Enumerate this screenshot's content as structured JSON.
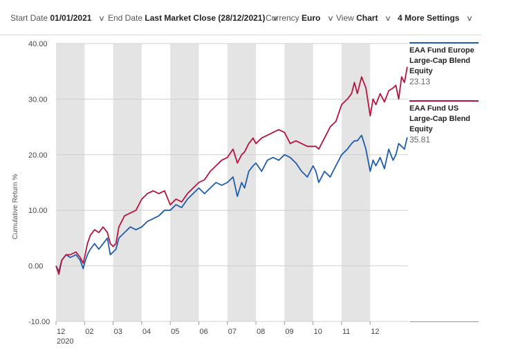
{
  "toolbar": {
    "start_label": "Start Date",
    "start_value": "01/01/2021",
    "end_label": "End Date",
    "end_value": "Last Market Close (28/12/2021)",
    "currency_label": "Currency",
    "currency_value": "Euro",
    "view_label": "View",
    "view_value": "Chart",
    "more_label": "4 More Settings",
    "chevron": "∨"
  },
  "legend": [
    {
      "name": "EAA Fund Europe Large-Cap Blend Equity",
      "value": "23.13",
      "color": "#1f5bab"
    },
    {
      "name": "EAA Fund US Large-Cap Blend Equity",
      "value": "35.81",
      "color": "#b5123e"
    }
  ],
  "chart_data": {
    "type": "line",
    "ylabel": "Cumulative Return %",
    "ylim": [
      -10,
      40
    ],
    "yticks": [
      -10,
      0,
      10,
      20,
      30,
      40
    ],
    "ytick_labels": [
      "-10.00",
      "0.00",
      "10.00",
      "20.00",
      "30.00",
      "40.00"
    ],
    "x_range": [
      0,
      12.35
    ],
    "x_ticks": [
      {
        "x": 0,
        "label": "12",
        "sublabel": "2020"
      },
      {
        "x": 1,
        "label": "02"
      },
      {
        "x": 2,
        "label": "03"
      },
      {
        "x": 3,
        "label": "04"
      },
      {
        "x": 4,
        "label": "05"
      },
      {
        "x": 5,
        "label": "06"
      },
      {
        "x": 6,
        "label": "07"
      },
      {
        "x": 7,
        "label": "08"
      },
      {
        "x": 8,
        "label": "09"
      },
      {
        "x": 9,
        "label": "10"
      },
      {
        "x": 10,
        "label": "11"
      },
      {
        "x": 11,
        "label": "12"
      }
    ],
    "shaded_bands": [
      [
        0,
        1
      ],
      [
        2,
        3
      ],
      [
        4,
        5
      ],
      [
        6,
        7
      ],
      [
        8,
        9
      ],
      [
        10,
        11
      ]
    ],
    "grid": true,
    "series": [
      {
        "name": "EAA Fund Europe Large-Cap Blend Equity",
        "color": "#1f5bab",
        "x": [
          0,
          0.1,
          0.2,
          0.35,
          0.5,
          0.7,
          0.85,
          0.95,
          1.0,
          1.1,
          1.2,
          1.35,
          1.5,
          1.65,
          1.8,
          1.9,
          2.0,
          2.1,
          2.2,
          2.4,
          2.6,
          2.8,
          3.0,
          3.2,
          3.4,
          3.6,
          3.8,
          4.0,
          4.2,
          4.4,
          4.6,
          4.8,
          5.0,
          5.2,
          5.4,
          5.6,
          5.8,
          6.0,
          6.2,
          6.35,
          6.5,
          6.6,
          6.75,
          6.9,
          7.0,
          7.2,
          7.4,
          7.6,
          7.8,
          8.0,
          8.2,
          8.4,
          8.6,
          8.8,
          9.0,
          9.1,
          9.2,
          9.4,
          9.6,
          9.8,
          10.0,
          10.2,
          10.35,
          10.45,
          10.55,
          10.7,
          10.85,
          11.0,
          11.1,
          11.2,
          11.35,
          11.5,
          11.65,
          11.8,
          11.9,
          12.0,
          12.1,
          12.2,
          12.3
        ],
        "y": [
          0,
          -1,
          1,
          2,
          1.5,
          2,
          1,
          -0.5,
          0.5,
          2,
          3,
          4,
          3,
          4,
          5,
          2,
          2.5,
          3,
          5,
          6,
          7,
          6.5,
          7,
          8,
          8.5,
          9,
          10,
          10,
          11,
          10.5,
          12,
          13,
          14,
          13,
          14,
          15,
          14.5,
          15,
          16,
          12.5,
          15,
          14,
          17,
          18,
          18.5,
          17,
          19,
          19.5,
          19,
          20,
          19.5,
          18.5,
          17,
          16,
          18,
          17,
          15,
          17,
          16,
          18,
          20,
          21,
          22,
          22.5,
          22.5,
          23.5,
          21,
          17,
          19,
          18,
          19.5,
          17.5,
          21,
          19,
          20,
          22,
          21.5,
          21,
          23.13
        ]
      },
      {
        "name": "EAA Fund US Large-Cap Blend Equity",
        "color": "#b5123e",
        "x": [
          0,
          0.1,
          0.2,
          0.35,
          0.5,
          0.7,
          0.85,
          0.95,
          1.0,
          1.1,
          1.2,
          1.35,
          1.5,
          1.65,
          1.8,
          1.9,
          2.0,
          2.1,
          2.2,
          2.4,
          2.6,
          2.8,
          3.0,
          3.2,
          3.4,
          3.6,
          3.8,
          4.0,
          4.2,
          4.4,
          4.6,
          4.8,
          5.0,
          5.2,
          5.4,
          5.6,
          5.8,
          6.0,
          6.2,
          6.35,
          6.5,
          6.6,
          6.75,
          6.9,
          7.0,
          7.2,
          7.4,
          7.6,
          7.8,
          8.0,
          8.2,
          8.4,
          8.6,
          8.8,
          9.0,
          9.1,
          9.2,
          9.4,
          9.6,
          9.8,
          10.0,
          10.2,
          10.35,
          10.45,
          10.55,
          10.7,
          10.85,
          11.0,
          11.1,
          11.2,
          11.35,
          11.5,
          11.65,
          11.8,
          11.9,
          12.0,
          12.1,
          12.2,
          12.3
        ],
        "y": [
          0,
          -1.5,
          1,
          2,
          2,
          2.5,
          1.5,
          0.5,
          1.5,
          4,
          5.5,
          6.5,
          6,
          7,
          6,
          4,
          3.5,
          4,
          7,
          9,
          9.5,
          10,
          12,
          13,
          13.5,
          13,
          13.5,
          11,
          12,
          11.5,
          13,
          14,
          15,
          15.5,
          17,
          18,
          19,
          19.5,
          21,
          18.5,
          20,
          20.5,
          22,
          23,
          22,
          23,
          23.5,
          24,
          24.5,
          24,
          22,
          22.5,
          22,
          21.5,
          21.5,
          21.5,
          21,
          23,
          25,
          26,
          29,
          30,
          31,
          33,
          31,
          34,
          32,
          27,
          30,
          29,
          31,
          29.5,
          31.5,
          32,
          32.5,
          30,
          34,
          33,
          35.81
        ]
      }
    ]
  }
}
